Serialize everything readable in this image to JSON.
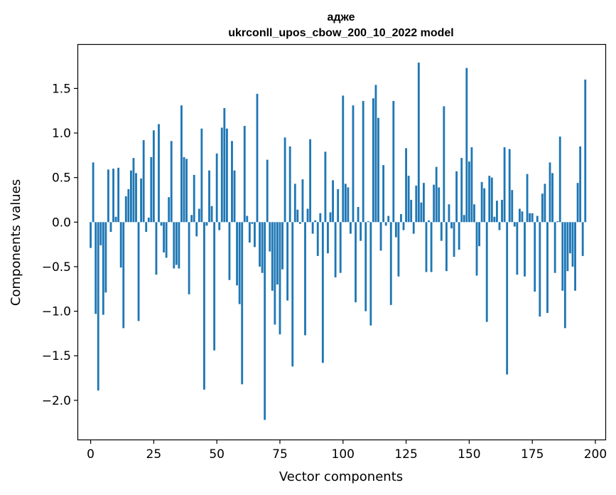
{
  "chart_data": {
    "type": "bar",
    "title": "адже",
    "subtitle": "ukrconll_upos_cbow_200_10_2022 model",
    "xlabel": "Vector components",
    "ylabel": "Components values",
    "xlim": [
      -4.95,
      203.95
    ],
    "ylim": [
      -2.44,
      1.99
    ],
    "xticks": [
      0,
      25,
      50,
      75,
      100,
      125,
      150,
      175,
      200
    ],
    "yticks": [
      -2.0,
      -1.5,
      -1.0,
      -0.5,
      0.0,
      0.5,
      1.0,
      1.5
    ],
    "ytick_labels": [
      "−2.0",
      "−1.5",
      "−1.0",
      "−0.5",
      "0.0",
      "0.5",
      "1.0",
      "1.5"
    ],
    "bar_color": "#1f77b4",
    "grid": false,
    "values": [
      -0.29,
      0.67,
      -1.03,
      -1.89,
      -0.26,
      -1.04,
      -0.79,
      0.59,
      -0.11,
      0.6,
      0.06,
      0.61,
      -0.51,
      -1.19,
      0.29,
      0.37,
      0.58,
      0.72,
      0.55,
      -1.11,
      0.49,
      0.92,
      -0.11,
      0.05,
      0.73,
      1.03,
      -0.59,
      1.1,
      -0.04,
      -0.34,
      -0.4,
      0.28,
      0.91,
      -0.52,
      -0.48,
      -0.52,
      1.31,
      0.73,
      0.71,
      -0.81,
      0.08,
      0.53,
      -0.16,
      0.15,
      1.05,
      -1.88,
      -0.04,
      0.58,
      0.18,
      -1.44,
      0.77,
      -0.09,
      1.06,
      1.28,
      1.05,
      -0.65,
      0.91,
      0.58,
      -0.71,
      -0.92,
      -1.82,
      1.08,
      0.07,
      -0.23,
      -0.02,
      -0.28,
      1.44,
      -0.5,
      -0.57,
      -2.22,
      0.7,
      -0.33,
      -0.77,
      -1.15,
      -0.7,
      -1.26,
      -0.53,
      0.95,
      -0.88,
      0.85,
      -1.62,
      0.43,
      0.14,
      -0.02,
      0.48,
      -1.27,
      0.15,
      0.93,
      -0.13,
      0.02,
      -0.38,
      0.1,
      -1.58,
      0.79,
      -0.35,
      0.11,
      0.47,
      -0.62,
      0.37,
      -0.57,
      1.42,
      0.43,
      0.39,
      -0.13,
      1.31,
      -0.9,
      0.17,
      -0.21,
      1.36,
      -1.0,
      0.01,
      -1.16,
      1.39,
      1.54,
      1.17,
      -0.32,
      0.64,
      -0.04,
      0.07,
      -0.93,
      1.36,
      -0.17,
      -0.61,
      0.09,
      -0.09,
      0.83,
      0.52,
      0.25,
      -0.13,
      0.41,
      1.79,
      0.22,
      0.44,
      -0.56,
      0.02,
      -0.56,
      0.42,
      0.62,
      0.39,
      -0.21,
      1.3,
      -0.55,
      0.2,
      -0.07,
      -0.39,
      0.57,
      -0.31,
      0.72,
      0.08,
      1.73,
      0.68,
      0.84,
      0.2,
      -0.6,
      -0.27,
      0.45,
      0.38,
      -1.12,
      0.52,
      0.5,
      0.06,
      0.24,
      -0.09,
      0.25,
      0.84,
      -1.71,
      0.82,
      0.36,
      -0.05,
      -0.59,
      0.15,
      0.12,
      -0.61,
      0.54,
      0.1,
      0.1,
      -0.78,
      0.07,
      -1.06,
      0.32,
      0.43,
      -1.02,
      0.67,
      0.55,
      -0.57,
      0.01,
      0.96,
      -0.77,
      -1.19,
      -0.55,
      -0.35,
      -0.5,
      -0.77,
      0.44,
      0.85,
      -0.38,
      1.6
    ]
  }
}
